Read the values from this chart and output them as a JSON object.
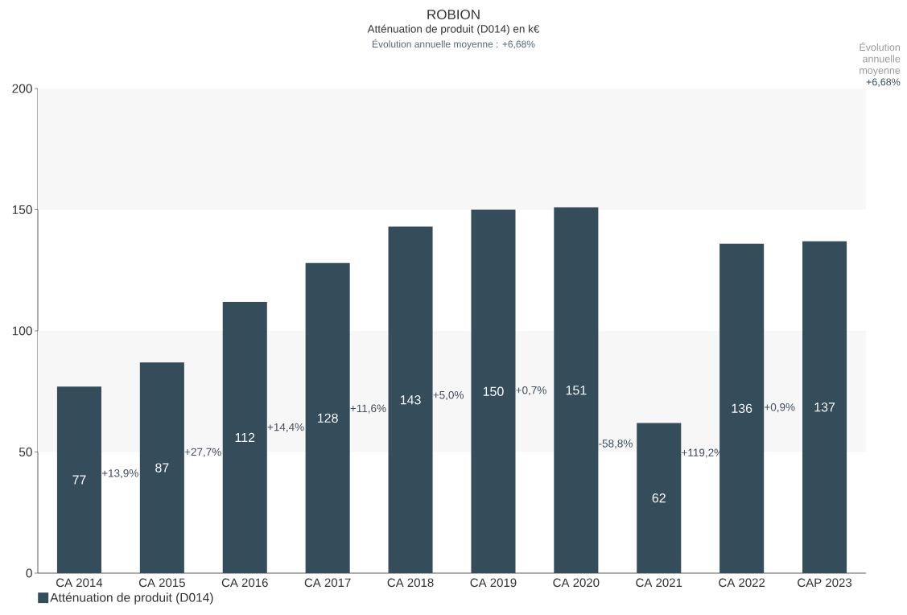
{
  "chart_data": {
    "type": "bar",
    "title": "ROBION",
    "subtitle": "Atténuation de produit (D014) en k€",
    "categories": [
      "CA 2014",
      "CA 2015",
      "CA 2016",
      "CA 2017",
      "CA 2018",
      "CA 2019",
      "CA 2020",
      "CA 2021",
      "CA 2022",
      "CAP 2023"
    ],
    "series": [
      {
        "name": "Atténuation de produit (D014)",
        "color": "#354c5b",
        "values": [
          77,
          87,
          112,
          128,
          143,
          150,
          151,
          62,
          136,
          137
        ]
      }
    ],
    "ylim": [
      0,
      200
    ],
    "yticks": [
      0,
      50,
      100,
      150,
      200
    ],
    "bands": [
      {
        "axis": "y",
        "from": 50,
        "to": 100,
        "color": "#f7f7f7"
      },
      {
        "axis": "y",
        "from": 150,
        "to": 200,
        "color": "#f7f7f7"
      }
    ],
    "data_labels": true,
    "legend": "bottom left",
    "annotations": [
      "Évolution annuelle moyenne : +6,68%",
      "Évolution annuelle moyenne",
      "+6,68%",
      "+13,9%",
      "+27,7%",
      "+14,4%",
      "+11,6%",
      "+5,0%",
      "+0,7%",
      "-58,8%",
      "+119,2%",
      "+0,9%"
    ]
  }
}
